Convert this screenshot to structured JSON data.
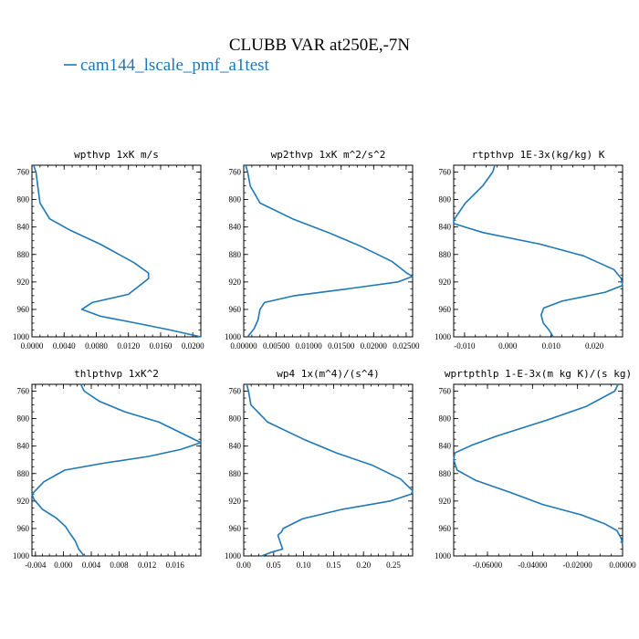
{
  "figure": {
    "title": "CLUBB VAR at250E,-7N",
    "legend": [
      {
        "label": "cam144_lscale_pmf_a1test",
        "color": "#1f77b4"
      }
    ]
  },
  "chart_data": [
    {
      "type": "line",
      "title": "wpthvp  1xK m/s",
      "ylim": [
        1000,
        750
      ],
      "yticks": [
        "760",
        "800",
        "840",
        "880",
        "920",
        "960",
        "1000"
      ],
      "xlim": [
        0.0,
        0.021
      ],
      "xticks": [
        "0.0000",
        "0.0040",
        "0.0080",
        "0.0120",
        "0.0160",
        "0.0200"
      ],
      "xtick_values": [
        0,
        0.004,
        0.008,
        0.012,
        0.016,
        0.02
      ],
      "series": [
        {
          "color": "#1f77b4",
          "x": [
            0.0002,
            0.0005,
            0.001,
            0.0022,
            0.0048,
            0.0085,
            0.0127,
            0.0145,
            0.0145,
            0.012,
            0.0075,
            0.0062,
            0.0085,
            0.013,
            0.0172,
            0.021
          ],
          "y": [
            750,
            760,
            805,
            828,
            845,
            865,
            892,
            907,
            915,
            938,
            950,
            960,
            970,
            980,
            990,
            1000
          ]
        }
      ]
    },
    {
      "type": "line",
      "title": "wp2thvp  1xK m^2/s^2",
      "ylim": [
        1000,
        750
      ],
      "yticks": [
        "760",
        "800",
        "840",
        "880",
        "920",
        "960",
        "1000"
      ],
      "xlim": [
        0.0,
        0.026
      ],
      "xticks": [
        "0.00000",
        "0.00500",
        "0.01000",
        "0.01500",
        "0.02000",
        "0.02500"
      ],
      "xtick_values": [
        0,
        0.005,
        0.01,
        0.015,
        0.02,
        0.025
      ],
      "series": [
        {
          "color": "#1f77b4",
          "x": [
            0.0003,
            0.0006,
            0.001,
            0.0025,
            0.0075,
            0.013,
            0.018,
            0.0228,
            0.0251,
            0.026,
            0.0238,
            0.016,
            0.0078,
            0.0032,
            0.0025,
            0.0022,
            0.0016,
            0.0006
          ],
          "y": [
            750,
            760,
            780,
            805,
            828,
            848,
            868,
            890,
            907,
            912,
            920,
            930,
            940,
            950,
            960,
            975,
            988,
            1000
          ]
        }
      ]
    },
    {
      "type": "line",
      "title": "rtpthvp  1E-3x(kg/kg) K",
      "ylim": [
        1000,
        750
      ],
      "yticks": [
        "760",
        "800",
        "840",
        "880",
        "920",
        "960",
        "1000"
      ],
      "xlim": [
        -0.0125,
        0.0265
      ],
      "xticks": [
        "-0.010",
        "0.000",
        "0.010",
        "0.020"
      ],
      "xtick_values": [
        -0.01,
        0,
        0.01,
        0.02
      ],
      "series": [
        {
          "color": "#1f77b4",
          "x": [
            -0.003,
            -0.0035,
            -0.0058,
            -0.0098,
            -0.0125,
            -0.0125,
            -0.0058,
            0.0075,
            0.0175,
            0.0245,
            0.0262,
            0.0265,
            0.0225,
            0.0125,
            0.0083,
            0.0077,
            0.0082,
            0.0095,
            0.0105
          ],
          "y": [
            750,
            760,
            780,
            805,
            830,
            835,
            848,
            865,
            882,
            902,
            915,
            925,
            935,
            948,
            958,
            968,
            980,
            990,
            1000
          ]
        }
      ]
    },
    {
      "type": "line",
      "title": "thlpthvp  1xK^2",
      "ylim": [
        1000,
        750
      ],
      "yticks": [
        "760",
        "800",
        "840",
        "880",
        "920",
        "960",
        "1000"
      ],
      "xlim": [
        -0.0045,
        0.0197
      ],
      "xticks": [
        "-0.004",
        "0.000",
        "0.004",
        "0.008",
        "0.012",
        "0.016"
      ],
      "xtick_values": [
        -0.004,
        0,
        0.004,
        0.008,
        0.012,
        0.016
      ],
      "series": [
        {
          "color": "#1f77b4",
          "x": [
            0.0025,
            0.003,
            0.0052,
            0.0088,
            0.0137,
            0.0167,
            0.0197,
            0.0168,
            0.0122,
            0.0057,
            0.0002,
            -0.0028,
            -0.0045,
            -0.0042,
            -0.003,
            -0.001,
            0.0003,
            0.001,
            0.0017,
            0.0022,
            0.003
          ],
          "y": [
            750,
            760,
            775,
            790,
            805,
            820,
            835,
            845,
            855,
            865,
            875,
            892,
            910,
            918,
            932,
            945,
            957,
            968,
            978,
            990,
            1000
          ]
        }
      ]
    },
    {
      "type": "line",
      "title": "wp4  1x(m^4)/(s^4)",
      "ylim": [
        1000,
        750
      ],
      "yticks": [
        "760",
        "800",
        "840",
        "880",
        "920",
        "960",
        "1000"
      ],
      "xlim": [
        0.0,
        0.282
      ],
      "xticks": [
        "0.00",
        "0.05",
        "0.10",
        "0.15",
        "0.20",
        "0.25"
      ],
      "xtick_values": [
        0,
        0.05,
        0.1,
        0.15,
        0.2,
        0.25
      ],
      "series": [
        {
          "color": "#1f77b4",
          "x": [
            0.005,
            0.008,
            0.012,
            0.04,
            0.1,
            0.155,
            0.215,
            0.262,
            0.282,
            0.28,
            0.245,
            0.165,
            0.098,
            0.066,
            0.063,
            0.057,
            0.061,
            0.065,
            0.045,
            0.03
          ],
          "y": [
            750,
            760,
            780,
            805,
            830,
            850,
            868,
            888,
            905,
            910,
            920,
            932,
            946,
            960,
            965,
            970,
            980,
            990,
            995,
            1000
          ]
        }
      ]
    },
    {
      "type": "line",
      "title": "wprtpthlp  1-E-3x(m kg K)/(s kg)",
      "ylim": [
        1000,
        750
      ],
      "yticks": [
        "760",
        "800",
        "840",
        "880",
        "920",
        "960",
        "1000"
      ],
      "xlim": [
        -0.075,
        0.0
      ],
      "xticks": [
        "-0.06000",
        "-0.04000",
        "-0.02000",
        "0.00000"
      ],
      "xtick_values": [
        -0.06,
        -0.04,
        -0.02,
        0.0
      ],
      "series": [
        {
          "color": "#1f77b4",
          "x": [
            -0.002,
            -0.0035,
            -0.016,
            -0.0335,
            -0.0555,
            -0.0665,
            -0.0745,
            -0.075,
            -0.0735,
            -0.0652,
            -0.0495,
            -0.0355,
            -0.0185,
            -0.008,
            -0.0025,
            -0.0005,
            0.0
          ],
          "y": [
            750,
            760,
            782,
            802,
            825,
            838,
            850,
            860,
            875,
            890,
            908,
            925,
            940,
            953,
            963,
            975,
            985
          ]
        }
      ]
    }
  ]
}
